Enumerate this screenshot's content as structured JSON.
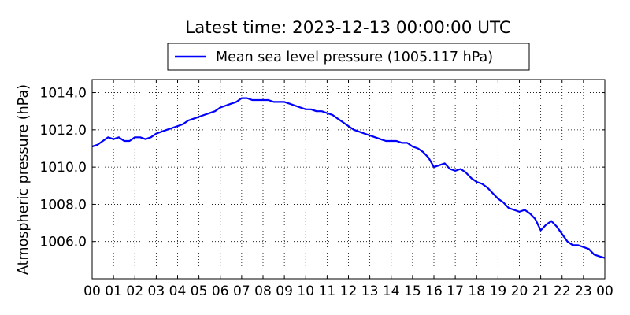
{
  "chart_data": {
    "type": "line",
    "title": "Latest time: 2023-12-13 00:00:00 UTC",
    "xlabel": "",
    "ylabel": "Atmospheric pressure (hPa)",
    "xlim": [
      0,
      24
    ],
    "ylim": [
      1004.0,
      1014.7
    ],
    "grid": true,
    "legend_position": "top-center",
    "x_ticks": [
      "00",
      "01",
      "02",
      "03",
      "04",
      "05",
      "06",
      "07",
      "08",
      "09",
      "10",
      "11",
      "12",
      "13",
      "14",
      "15",
      "16",
      "17",
      "18",
      "19",
      "20",
      "21",
      "22",
      "23",
      "00"
    ],
    "y_ticks": [
      {
        "value": 1006.0,
        "label": "1006.0"
      },
      {
        "value": 1008.0,
        "label": "1008.0"
      },
      {
        "value": 1010.0,
        "label": "1010.0"
      },
      {
        "value": 1012.0,
        "label": "1012.0"
      },
      {
        "value": 1014.0,
        "label": "1014.0"
      }
    ],
    "series": [
      {
        "name": "Mean sea level pressure (1005.117 hPa)",
        "color": "#0000ff",
        "x": [
          0,
          0.25,
          0.5,
          0.75,
          1,
          1.25,
          1.5,
          1.75,
          2,
          2.25,
          2.5,
          2.75,
          3,
          3.25,
          3.5,
          3.75,
          4,
          4.25,
          4.5,
          4.75,
          5,
          5.25,
          5.5,
          5.75,
          6,
          6.25,
          6.5,
          6.75,
          7,
          7.25,
          7.5,
          7.75,
          8,
          8.25,
          8.5,
          8.75,
          9,
          9.25,
          9.5,
          9.75,
          10,
          10.25,
          10.5,
          10.75,
          11,
          11.25,
          11.5,
          11.75,
          12,
          12.25,
          12.5,
          12.75,
          13,
          13.25,
          13.5,
          13.75,
          14,
          14.25,
          14.5,
          14.75,
          15,
          15.25,
          15.5,
          15.75,
          16,
          16.25,
          16.5,
          16.75,
          17,
          17.25,
          17.5,
          17.75,
          18,
          18.25,
          18.5,
          18.75,
          19,
          19.25,
          19.5,
          19.75,
          20,
          20.25,
          20.5,
          20.75,
          21,
          21.25,
          21.5,
          21.75,
          22,
          22.25,
          22.5,
          22.75,
          23,
          23.25,
          23.5,
          23.75,
          24
        ],
        "y": [
          1011.1,
          1011.2,
          1011.4,
          1011.6,
          1011.5,
          1011.6,
          1011.4,
          1011.4,
          1011.6,
          1011.6,
          1011.5,
          1011.6,
          1011.8,
          1011.9,
          1012.0,
          1012.1,
          1012.2,
          1012.3,
          1012.5,
          1012.6,
          1012.7,
          1012.8,
          1012.9,
          1013.0,
          1013.2,
          1013.3,
          1013.4,
          1013.5,
          1013.7,
          1013.7,
          1013.6,
          1013.6,
          1013.6,
          1013.6,
          1013.5,
          1013.5,
          1013.5,
          1013.4,
          1013.3,
          1013.2,
          1013.1,
          1013.1,
          1013.0,
          1013.0,
          1012.9,
          1012.8,
          1012.6,
          1012.4,
          1012.2,
          1012.0,
          1011.9,
          1011.8,
          1011.7,
          1011.6,
          1011.5,
          1011.4,
          1011.4,
          1011.4,
          1011.3,
          1011.3,
          1011.1,
          1011.0,
          1010.8,
          1010.5,
          1010.0,
          1010.1,
          1010.2,
          1009.9,
          1009.8,
          1009.9,
          1009.7,
          1009.4,
          1009.2,
          1009.1,
          1008.9,
          1008.6,
          1008.3,
          1008.1,
          1007.8,
          1007.7,
          1007.6,
          1007.7,
          1007.5,
          1007.2,
          1006.6,
          1006.9,
          1007.1,
          1006.8,
          1006.4,
          1006.0,
          1005.8,
          1005.8,
          1005.7,
          1005.6,
          1005.3,
          1005.2,
          1005.117
        ]
      }
    ]
  }
}
